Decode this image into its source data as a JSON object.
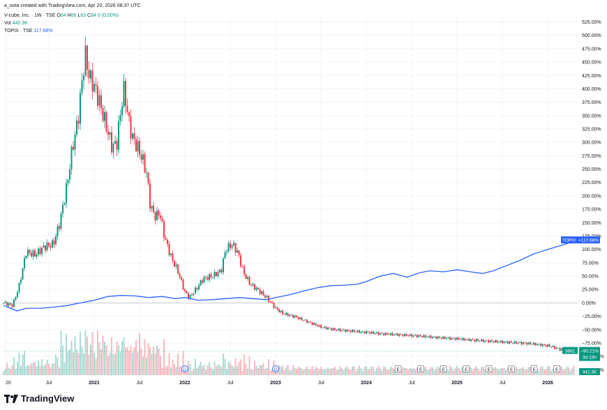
{
  "header": {
    "creator_line": "a_oota created with TradingView.com, Apr 20, 2026 08:37 UTC",
    "symbol_line": "V-cube, Inc. · 1W · TSE",
    "ohlc": {
      "o_label": "O",
      "o": "64",
      "h_label": "H",
      "h": "66",
      "l_label": "L",
      "l": "63",
      "c_label": "C",
      "c": "64",
      "chg": "0 (0.00%)"
    },
    "vol_label": "Vol",
    "vol_value": "442.3K",
    "topix_label": "TOPIX · TSE",
    "topix_value": "117.68%"
  },
  "branding": {
    "name": "TradingView"
  },
  "colors": {
    "up": "#089981",
    "down": "#f23645",
    "topix": "#2962ff",
    "grid": "#f0f3fa",
    "axis_text": "#131722"
  },
  "chart_data": {
    "type": "line",
    "title": "",
    "xlabel": "",
    "ylabel": "",
    "x_ticks": [
      "20",
      "Jul",
      "2021",
      "Jul",
      "2022",
      "Jul",
      "2023",
      "Jul",
      "2024",
      "Jul",
      "2025",
      "Jul",
      "2026"
    ],
    "x_range": [
      2020.0,
      2026.33
    ],
    "y_ticks": [
      "525.00%",
      "500.00%",
      "475.00%",
      "450.00%",
      "425.00%",
      "400.00%",
      "375.00%",
      "350.00%",
      "325.00%",
      "300.00%",
      "275.00%",
      "250.00%",
      "225.00%",
      "200.00%",
      "175.00%",
      "150.00%",
      "125.00%",
      "100.00%",
      "75.00%",
      "50.00%",
      "25.00%",
      "0.00%",
      "−25.00%",
      "−50.00%",
      "−75.00%",
      "−100.00%",
      "−125.00%"
    ],
    "ylim": [
      -135,
      540
    ],
    "grid": true,
    "series": [
      {
        "name": "V-cube, Inc.",
        "style": "candles",
        "points": [
          [
            2020.0,
            0
          ],
          [
            2020.1,
            -5
          ],
          [
            2020.17,
            30
          ],
          [
            2020.25,
            95
          ],
          [
            2020.35,
            90
          ],
          [
            2020.45,
            105
          ],
          [
            2020.55,
            110
          ],
          [
            2020.62,
            150
          ],
          [
            2020.7,
            220
          ],
          [
            2020.76,
            290
          ],
          [
            2020.82,
            340
          ],
          [
            2020.87,
            420
          ],
          [
            2020.9,
            465
          ],
          [
            2020.95,
            420
          ],
          [
            2021.0,
            405
          ],
          [
            2021.05,
            380
          ],
          [
            2021.1,
            350
          ],
          [
            2021.15,
            320
          ],
          [
            2021.2,
            290
          ],
          [
            2021.25,
            300
          ],
          [
            2021.3,
            370
          ],
          [
            2021.33,
            400
          ],
          [
            2021.38,
            340
          ],
          [
            2021.42,
            310
          ],
          [
            2021.48,
            290
          ],
          [
            2021.53,
            270
          ],
          [
            2021.58,
            240
          ],
          [
            2021.62,
            180
          ],
          [
            2021.68,
            160
          ],
          [
            2021.72,
            170
          ],
          [
            2021.78,
            120
          ],
          [
            2021.85,
            85
          ],
          [
            2021.92,
            60
          ],
          [
            2022.0,
            20
          ],
          [
            2022.05,
            10
          ],
          [
            2022.12,
            25
          ],
          [
            2022.2,
            45
          ],
          [
            2022.3,
            50
          ],
          [
            2022.4,
            60
          ],
          [
            2022.45,
            100
          ],
          [
            2022.52,
            110
          ],
          [
            2022.58,
            95
          ],
          [
            2022.65,
            55
          ],
          [
            2022.72,
            35
          ],
          [
            2022.8,
            25
          ],
          [
            2022.9,
            10
          ],
          [
            2023.0,
            -10
          ],
          [
            2023.08,
            -20
          ],
          [
            2023.2,
            -25
          ],
          [
            2023.35,
            -35
          ],
          [
            2023.5,
            -45
          ],
          [
            2023.65,
            -50
          ],
          [
            2023.8,
            -52
          ],
          [
            2024.0,
            -55
          ],
          [
            2024.2,
            -58
          ],
          [
            2024.4,
            -60
          ],
          [
            2024.6,
            -62
          ],
          [
            2024.8,
            -65
          ],
          [
            2025.0,
            -67
          ],
          [
            2025.2,
            -70
          ],
          [
            2025.4,
            -72
          ],
          [
            2025.6,
            -74
          ],
          [
            2025.8,
            -76
          ],
          [
            2026.0,
            -80
          ],
          [
            2026.15,
            -87
          ],
          [
            2026.3,
            -90.21
          ]
        ]
      },
      {
        "name": "TOPIX",
        "style": "line",
        "points": [
          [
            2020.0,
            -5
          ],
          [
            2020.08,
            -10
          ],
          [
            2020.15,
            -15
          ],
          [
            2020.25,
            -10
          ],
          [
            2020.4,
            -10
          ],
          [
            2020.55,
            -8
          ],
          [
            2020.7,
            -5
          ],
          [
            2020.85,
            0
          ],
          [
            2021.0,
            5
          ],
          [
            2021.15,
            12
          ],
          [
            2021.3,
            14
          ],
          [
            2021.45,
            13
          ],
          [
            2021.6,
            10
          ],
          [
            2021.75,
            12
          ],
          [
            2021.9,
            8
          ],
          [
            2022.0,
            10
          ],
          [
            2022.15,
            5
          ],
          [
            2022.3,
            6
          ],
          [
            2022.45,
            8
          ],
          [
            2022.6,
            10
          ],
          [
            2022.75,
            8
          ],
          [
            2022.9,
            6
          ],
          [
            2023.0,
            10
          ],
          [
            2023.15,
            15
          ],
          [
            2023.3,
            22
          ],
          [
            2023.45,
            28
          ],
          [
            2023.6,
            32
          ],
          [
            2023.75,
            33
          ],
          [
            2023.9,
            35
          ],
          [
            2024.0,
            40
          ],
          [
            2024.15,
            50
          ],
          [
            2024.3,
            55
          ],
          [
            2024.45,
            48
          ],
          [
            2024.58,
            56
          ],
          [
            2024.7,
            60
          ],
          [
            2024.85,
            58
          ],
          [
            2025.0,
            62
          ],
          [
            2025.15,
            58
          ],
          [
            2025.28,
            55
          ],
          [
            2025.4,
            60
          ],
          [
            2025.55,
            70
          ],
          [
            2025.7,
            80
          ],
          [
            2025.85,
            92
          ],
          [
            2026.0,
            100
          ],
          [
            2026.1,
            105
          ],
          [
            2026.2,
            110
          ],
          [
            2026.3,
            117.68
          ]
        ]
      }
    ],
    "labels": {
      "topix_tag": "TOPIX",
      "topix_value": "+117.68%",
      "price": "3681",
      "price_change": "−90.21%",
      "countdown": "3d 23h",
      "volume": "442.3K"
    },
    "event_markers": [
      {
        "label": "D",
        "x": 2022.0
      },
      {
        "label": "D",
        "x": 2023.0
      },
      {
        "label": "E",
        "x": 2024.35
      },
      {
        "label": "E",
        "x": 2024.6
      },
      {
        "label": "E",
        "x": 2024.85
      },
      {
        "label": "E",
        "x": 2025.1
      },
      {
        "label": "E",
        "x": 2025.35
      },
      {
        "label": "E",
        "x": 2025.6
      },
      {
        "label": "E",
        "x": 2025.85
      },
      {
        "label": "E",
        "x": 2026.1
      }
    ]
  }
}
